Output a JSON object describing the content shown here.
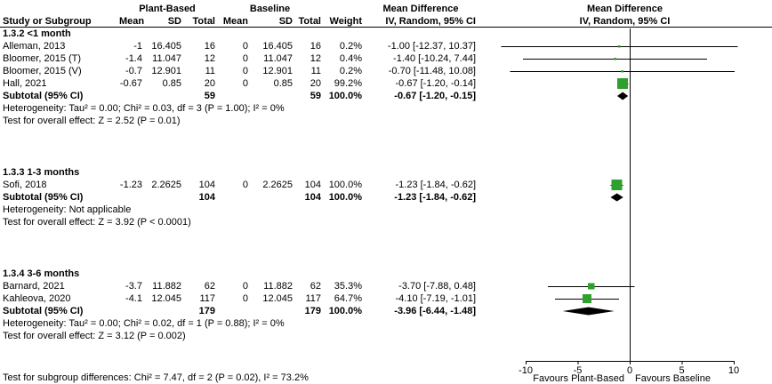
{
  "header": {
    "plant_based": "Plant-Based",
    "baseline": "Baseline",
    "mean_diff_left": "Mean Difference",
    "mean_diff_right": "Mean Difference",
    "study": "Study or Subgroup",
    "mean": "Mean",
    "sd": "SD",
    "total": "Total",
    "mean2": "Mean",
    "sd2": "SD",
    "total2": "Total",
    "weight": "Weight",
    "ci_left": "IV, Random, 95% CI",
    "ci_right": "IV, Random, 95% CI"
  },
  "subgroups": [
    {
      "title": "1.3.2 <1 month",
      "studies": [
        {
          "name": "Alleman, 2013",
          "mean": "-1",
          "sd": "16.405",
          "total": "16",
          "mean2": "0",
          "sd2": "16.405",
          "total2": "16",
          "weight": "0.2%",
          "ci": "-1.00 [-12.37, 10.37]"
        },
        {
          "name": "Bloomer, 2015 (T)",
          "mean": "-1.4",
          "sd": "11.047",
          "total": "12",
          "mean2": "0",
          "sd2": "11.047",
          "total2": "12",
          "weight": "0.4%",
          "ci": "-1.40 [-10.24, 7.44]"
        },
        {
          "name": "Bloomer, 2015 (V)",
          "mean": "-0.7",
          "sd": "12.901",
          "total": "11",
          "mean2": "0",
          "sd2": "12.901",
          "total2": "11",
          "weight": "0.2%",
          "ci": "-0.70 [-11.48, 10.08]"
        },
        {
          "name": "Hall, 2021",
          "mean": "-0.67",
          "sd": "0.85",
          "total": "20",
          "mean2": "0",
          "sd2": "0.85",
          "total2": "20",
          "weight": "99.2%",
          "ci": "-0.67 [-1.20, -0.14]"
        }
      ],
      "subtotal": {
        "label": "Subtotal (95% CI)",
        "total": "59",
        "total2": "59",
        "weight": "100.0%",
        "ci": "-0.67 [-1.20, -0.15]"
      },
      "heterogeneity": "Heterogeneity: Tau² = 0.00; Chi² = 0.03, df = 3 (P = 1.00); I² = 0%",
      "overall_effect": "Test for overall effect: Z = 2.52 (P = 0.01)"
    },
    {
      "title": "1.3.3 1-3 months",
      "studies": [
        {
          "name": "Sofi, 2018",
          "mean": "-1.23",
          "sd": "2.2625",
          "total": "104",
          "mean2": "0",
          "sd2": "2.2625",
          "total2": "104",
          "weight": "100.0%",
          "ci": "-1.23 [-1.84, -0.62]"
        }
      ],
      "subtotal": {
        "label": "Subtotal (95% CI)",
        "total": "104",
        "total2": "104",
        "weight": "100.0%",
        "ci": "-1.23 [-1.84, -0.62]"
      },
      "heterogeneity": "Heterogeneity: Not applicable",
      "overall_effect": "Test for overall effect: Z = 3.92 (P < 0.0001)"
    },
    {
      "title": "1.3.4 3-6 months",
      "studies": [
        {
          "name": "Barnard, 2021",
          "mean": "-3.7",
          "sd": "11.882",
          "total": "62",
          "mean2": "0",
          "sd2": "11.882",
          "total2": "62",
          "weight": "35.3%",
          "ci": "-3.70 [-7.88, 0.48]"
        },
        {
          "name": "Kahleova, 2020",
          "mean": "-4.1",
          "sd": "12.045",
          "total": "117",
          "mean2": "0",
          "sd2": "12.045",
          "total2": "117",
          "weight": "64.7%",
          "ci": "-4.10 [-7.19, -1.01]"
        }
      ],
      "subtotal": {
        "label": "Subtotal (95% CI)",
        "total": "179",
        "total2": "179",
        "weight": "100.0%",
        "ci": "-3.96 [-6.44, -1.48]"
      },
      "heterogeneity": "Heterogeneity: Tau² = 0.00; Chi² = 0.02, df = 1 (P = 0.88); I² = 0%",
      "overall_effect": "Test for overall effect: Z = 3.12 (P = 0.002)"
    }
  ],
  "axis": {
    "favours_left": "Favours Plant-Based",
    "favours_right": "Favours Baseline"
  },
  "footer": "Test for subgroup differences: Chi² = 7.47, df = 2 (P = 0.02), I² = 73.2%",
  "chart_data": {
    "type": "forest",
    "effect_label": "IV, Random, 95% CI",
    "x_ticks": [
      -10,
      -5,
      0,
      5,
      10
    ],
    "xlim": [
      -13.5,
      13.5
    ],
    "xlabel_left": "Favours Plant-Based",
    "xlabel_right": "Favours Baseline",
    "marker_color": "#2DA02D",
    "summary_color": "#000000",
    "entries": [
      {
        "row": "alleman",
        "label": "Alleman, 2013",
        "md": -1.0,
        "ci": [
          -12.37,
          10.37
        ],
        "weight_pct": 0.2,
        "kind": "study"
      },
      {
        "row": "bloomer_t",
        "label": "Bloomer, 2015 (T)",
        "md": -1.4,
        "ci": [
          -10.24,
          7.44
        ],
        "weight_pct": 0.4,
        "kind": "study"
      },
      {
        "row": "bloomer_v",
        "label": "Bloomer, 2015 (V)",
        "md": -0.7,
        "ci": [
          -11.48,
          10.08
        ],
        "weight_pct": 0.2,
        "kind": "study"
      },
      {
        "row": "hall",
        "label": "Hall, 2021",
        "md": -0.67,
        "ci": [
          -1.2,
          -0.14
        ],
        "weight_pct": 99.2,
        "kind": "study"
      },
      {
        "row": "subtotal1",
        "label": "Subtotal <1 month",
        "md": -0.67,
        "ci": [
          -1.2,
          -0.15
        ],
        "kind": "diamond"
      },
      {
        "row": "sofi",
        "label": "Sofi, 2018",
        "md": -1.23,
        "ci": [
          -1.84,
          -0.62
        ],
        "weight_pct": 100.0,
        "kind": "study"
      },
      {
        "row": "subtotal2",
        "label": "Subtotal 1-3 months",
        "md": -1.23,
        "ci": [
          -1.84,
          -0.62
        ],
        "kind": "diamond"
      },
      {
        "row": "barnard",
        "label": "Barnard, 2021",
        "md": -3.7,
        "ci": [
          -7.88,
          0.48
        ],
        "weight_pct": 35.3,
        "kind": "study"
      },
      {
        "row": "kahleova",
        "label": "Kahleova, 2020",
        "md": -4.1,
        "ci": [
          -7.19,
          -1.01
        ],
        "weight_pct": 64.7,
        "kind": "study"
      },
      {
        "row": "subtotal3",
        "label": "Subtotal 3-6 months",
        "md": -3.96,
        "ci": [
          -6.44,
          -1.48
        ],
        "kind": "diamond"
      }
    ]
  }
}
